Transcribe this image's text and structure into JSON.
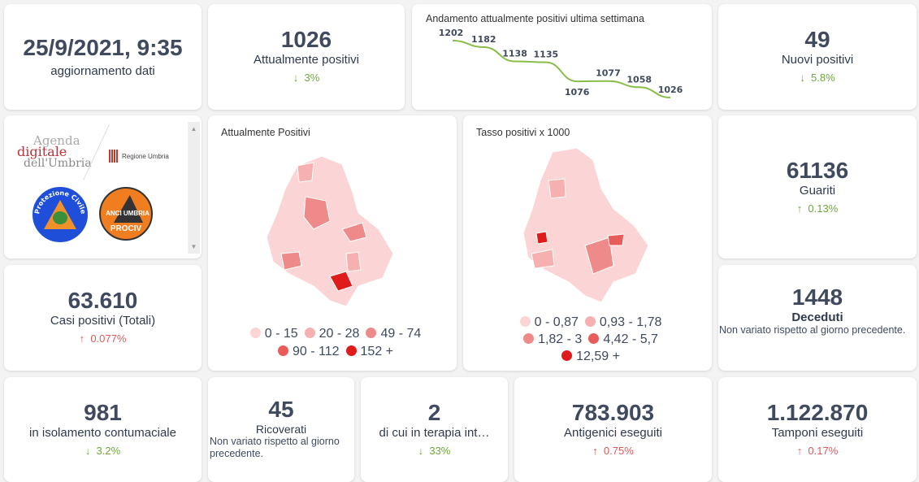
{
  "update": {
    "datetime": "25/9/2021, 9:35",
    "label": "aggiornamento dati"
  },
  "positivi": {
    "value": "1026",
    "label": "Attualmente positivi",
    "trend": "3%",
    "dir": "down"
  },
  "chart_data": {
    "type": "line",
    "title": "Andamento attualmente positivi ultima settimana",
    "values": [
      1202,
      1182,
      1138,
      1135,
      1076,
      1077,
      1058,
      1026
    ],
    "color": "#8bbd4a"
  },
  "nuovi": {
    "value": "49",
    "label": "Nuovi positivi",
    "trend": "5.8%",
    "dir": "down"
  },
  "logos": {
    "agenda": [
      "Agenda",
      "digitale",
      "dell'Umbria"
    ],
    "regione": "Regione Umbria",
    "protezione": "Protezione Civile",
    "anci": "ANCI UMBRIA",
    "prociv": "PROCIV"
  },
  "map1": {
    "title": "Attualmente Positivi",
    "legend": [
      {
        "label": "0 - 15",
        "color": "#fbd5d5"
      },
      {
        "label": "20 - 28",
        "color": "#f6b0b0"
      },
      {
        "label": "49 - 74",
        "color": "#ef8a8a"
      },
      {
        "label": "90 - 112",
        "color": "#e85c5c"
      },
      {
        "label": "152 +",
        "color": "#e01b1b"
      }
    ]
  },
  "map2": {
    "title": "Tasso positivi x 1000",
    "legend": [
      {
        "label": "0 - 0,87",
        "color": "#fbd5d5"
      },
      {
        "label": "0,93 - 1,78",
        "color": "#f6b0b0"
      },
      {
        "label": "1,82 - 3",
        "color": "#ef8a8a"
      },
      {
        "label": "4,42 - 5,7",
        "color": "#e85c5c"
      },
      {
        "label": "12,59 +",
        "color": "#e01b1b"
      }
    ]
  },
  "guariti": {
    "value": "61136",
    "label": "Guariti",
    "trend": "0.13%",
    "dir": "up"
  },
  "casi": {
    "value": "63.610",
    "label": "Casi positivi (Totali)",
    "trend": "0.077%",
    "dir": "up"
  },
  "deceduti": {
    "value": "1448",
    "label": "Deceduti",
    "note": "Non variato rispetto al giorno precedente."
  },
  "isolamento": {
    "value": "981",
    "label": "in isolamento contumaciale",
    "trend": "3.2%"
  },
  "ricoverati": {
    "value": "45",
    "label": "Ricoverati",
    "note": "Non variato rispetto al giorno precedente."
  },
  "terapia": {
    "value": "2",
    "label": "di cui in terapia int…",
    "trend": "33%"
  },
  "antigenici": {
    "value": "783.903",
    "label": "Antigenici eseguiti",
    "trend": "0.75%"
  },
  "tamponi": {
    "value": "1.122.870",
    "label": "Tamponi eseguiti",
    "trend": "0.17%"
  },
  "arrows": {
    "down": "↓",
    "up": "↑"
  }
}
